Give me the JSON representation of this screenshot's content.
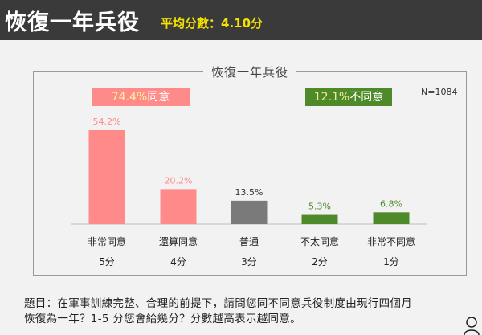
{
  "header": {
    "title": "恢復一年兵役",
    "score": "平均分數：4.10分"
  },
  "panel": {
    "title": "恢復一年兵役",
    "sample_size": "N=1084",
    "agree_badge": {
      "pct": "74.4%",
      "text": "同意"
    },
    "disagree_badge": {
      "pct": "12.1%",
      "text": "不同意"
    }
  },
  "chart_data": {
    "type": "bar",
    "categories": [
      "非常同意",
      "還算同意",
      "普通",
      "不太同意",
      "非常不同意"
    ],
    "scores": [
      "5分",
      "4分",
      "3分",
      "2分",
      "1分"
    ],
    "values": [
      54.2,
      20.2,
      13.5,
      5.3,
      6.8
    ],
    "value_labels": [
      "54.2%",
      "20.2%",
      "13.5%",
      "5.3%",
      "6.8%"
    ],
    "colors": [
      "#ff8a8a",
      "#ff8a8a",
      "#7a7a7a",
      "#4e8a2a",
      "#4e8a2a"
    ],
    "label_colors": [
      "#ff8a8a",
      "#ff8a8a",
      "#333333",
      "#4e8a2a",
      "#4e8a2a"
    ],
    "ylim": [
      0,
      54.2
    ],
    "grid": false
  },
  "question": {
    "line1": "題目：在軍事訓練完整、合理的前提下，請問您同不同意兵役制度由現行四個月",
    "line2": "恢復為一年？1-5 分您會給幾分？分數越高表示越同意。"
  },
  "icons": {
    "corner": "person-icon"
  }
}
